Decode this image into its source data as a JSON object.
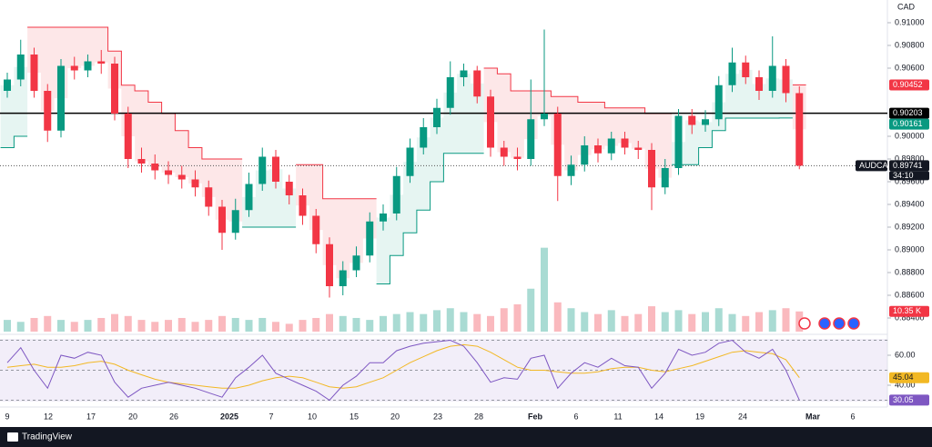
{
  "chart_data": {
    "type": "candlestick",
    "currency": "CAD",
    "symbol": "AUDCAD",
    "ylim": [
      0.8828,
      0.912
    ],
    "yticks": [
      {
        "value": 0.91,
        "label": "0.91000"
      },
      {
        "value": 0.908,
        "label": "0.90800"
      },
      {
        "value": 0.906,
        "label": "0.90600"
      },
      {
        "value": 0.9,
        "label": "0.90000"
      },
      {
        "value": 0.898,
        "label": "0.89800"
      },
      {
        "value": 0.896,
        "label": "0.89600"
      },
      {
        "value": 0.894,
        "label": "0.89400"
      },
      {
        "value": 0.892,
        "label": "0.89200"
      },
      {
        "value": 0.89,
        "label": "0.89000"
      },
      {
        "value": 0.888,
        "label": "0.88800"
      },
      {
        "value": 0.886,
        "label": "0.88600"
      },
      {
        "value": 0.884,
        "label": "0.88400"
      }
    ],
    "x_labels": [
      "9",
      "12",
      "17",
      "20",
      "26",
      "2025",
      "7",
      "10",
      "15",
      "20",
      "23",
      "28",
      "Feb",
      "6",
      "11",
      "14",
      "19",
      "24",
      "Mar",
      "6"
    ],
    "up_color": "#089981",
    "down_color": "#f23645",
    "open": [
      0.904,
      0.905,
      0.9072,
      0.904,
      0.9005,
      0.9062,
      0.9058,
      0.9066,
      0.9064,
      0.902,
      0.898,
      0.8976,
      0.897,
      0.8966,
      0.8962,
      0.8955,
      0.8938,
      0.8915,
      0.8935,
      0.8958,
      0.8982,
      0.896,
      0.8948,
      0.893,
      0.8905,
      0.8868,
      0.8882,
      0.8895,
      0.8925,
      0.8932,
      0.8965,
      0.899,
      0.9008,
      0.9025,
      0.9052,
      0.9058,
      0.9035,
      0.899,
      0.8982,
      0.898,
      0.9015,
      0.902,
      0.8965,
      0.8975,
      0.8992,
      0.8985,
      0.8998,
      0.899,
      0.8988,
      0.8955,
      0.8972,
      0.9018,
      0.901,
      0.9015,
      0.9045,
      0.9065,
      0.9052,
      0.904,
      0.9062,
      0.9038
    ],
    "high": [
      0.9056,
      0.9085,
      0.9078,
      0.9046,
      0.9068,
      0.907,
      0.9072,
      0.9076,
      0.907,
      0.9026,
      0.899,
      0.8984,
      0.8978,
      0.8974,
      0.897,
      0.8961,
      0.8944,
      0.8945,
      0.8968,
      0.899,
      0.8988,
      0.8966,
      0.8954,
      0.8936,
      0.8911,
      0.889,
      0.8903,
      0.8933,
      0.894,
      0.8973,
      0.8998,
      0.9016,
      0.9033,
      0.9066,
      0.9064,
      0.9062,
      0.9041,
      0.8996,
      0.899,
      0.905,
      0.9094,
      0.9026,
      0.8983,
      0.9,
      0.8998,
      0.9004,
      0.9004,
      0.8996,
      0.8994,
      0.898,
      0.9024,
      0.9024,
      0.9023,
      0.9053,
      0.9078,
      0.9071,
      0.9058,
      0.9088,
      0.9068,
      0.9044
    ],
    "low": [
      0.9034,
      0.9044,
      0.9034,
      0.8995,
      0.8999,
      0.905,
      0.9052,
      0.9055,
      0.9014,
      0.8972,
      0.8968,
      0.8962,
      0.8958,
      0.8954,
      0.8947,
      0.893,
      0.89,
      0.8909,
      0.8929,
      0.8952,
      0.8954,
      0.894,
      0.8922,
      0.8897,
      0.8858,
      0.886,
      0.8876,
      0.8889,
      0.8917,
      0.8926,
      0.8959,
      0.8984,
      0.9002,
      0.9019,
      0.9044,
      0.9029,
      0.8982,
      0.8974,
      0.897,
      0.8974,
      0.9009,
      0.8943,
      0.8957,
      0.8969,
      0.8977,
      0.8979,
      0.8984,
      0.898,
      0.8935,
      0.8949,
      0.8966,
      0.9002,
      0.9004,
      0.9009,
      0.9039,
      0.9046,
      0.9032,
      0.9034,
      0.903,
      0.8971
    ],
    "close": [
      0.905,
      0.9072,
      0.904,
      0.9005,
      0.9062,
      0.9058,
      0.9066,
      0.9064,
      0.902,
      0.898,
      0.8976,
      0.897,
      0.8966,
      0.8962,
      0.8955,
      0.8938,
      0.8915,
      0.8935,
      0.8958,
      0.8982,
      0.896,
      0.8948,
      0.893,
      0.8905,
      0.8868,
      0.8882,
      0.8895,
      0.8925,
      0.8932,
      0.8965,
      0.899,
      0.9008,
      0.9025,
      0.9052,
      0.9058,
      0.9035,
      0.899,
      0.8982,
      0.898,
      0.9015,
      0.902,
      0.8965,
      0.8975,
      0.8992,
      0.8985,
      0.8998,
      0.899,
      0.8988,
      0.8955,
      0.8972,
      0.9018,
      0.901,
      0.9015,
      0.9045,
      0.9065,
      0.9052,
      0.904,
      0.9062,
      0.9038,
      0.89741
    ],
    "support_line": {
      "color": "#089981",
      "fill": "rgba(8,153,129,0.10)",
      "values": [
        0.899,
        0.9,
        null,
        null,
        null,
        null,
        null,
        null,
        null,
        null,
        null,
        null,
        null,
        null,
        null,
        null,
        null,
        null,
        0.892,
        0.892,
        0.892,
        0.892,
        null,
        null,
        null,
        null,
        null,
        null,
        0.887,
        0.8895,
        0.8915,
        0.8935,
        0.896,
        0.8985,
        0.8985,
        0.8985,
        null,
        null,
        null,
        null,
        null,
        null,
        null,
        null,
        null,
        null,
        null,
        null,
        null,
        null,
        0.8975,
        0.8975,
        0.899,
        0.9005,
        0.9016,
        0.9016,
        0.9016,
        0.9016,
        0.90161,
        null
      ]
    },
    "resistance_line": {
      "color": "#f23645",
      "fill": "rgba(242,54,69,0.12)",
      "values": [
        null,
        null,
        0.9096,
        0.9096,
        0.9096,
        0.9096,
        0.9096,
        0.9096,
        0.9075,
        0.9045,
        0.904,
        0.903,
        0.902,
        0.9005,
        0.899,
        0.898,
        0.898,
        0.898,
        null,
        null,
        null,
        null,
        0.8975,
        0.8975,
        0.8945,
        0.8945,
        0.8945,
        0.8945,
        null,
        null,
        null,
        null,
        null,
        null,
        null,
        null,
        0.906,
        0.9055,
        0.904,
        0.904,
        0.904,
        0.9035,
        0.9035,
        0.903,
        0.903,
        0.9025,
        0.9025,
        0.9025,
        0.902,
        0.902,
        null,
        null,
        null,
        null,
        null,
        null,
        null,
        null,
        null,
        0.90452
      ]
    },
    "markers": [
      {
        "value": 0.90452,
        "label": "0.90452",
        "color": "#f23645"
      },
      {
        "value": 0.90203,
        "label": "0.90203",
        "color": "#000000"
      },
      {
        "value": 0.90161,
        "label": "0.90161",
        "color": "#089981"
      }
    ],
    "horizontal_line": 0.90203,
    "last_price": {
      "value": 0.89741,
      "label": "0.89741",
      "countdown": "34:10"
    },
    "volume": {
      "ylim": [
        0,
        170
      ],
      "values": [
        6,
        5,
        7,
        8,
        6,
        5,
        6,
        7,
        9,
        8,
        6,
        5,
        6,
        7,
        5,
        6,
        8,
        7,
        6,
        7,
        5,
        4,
        6,
        7,
        9,
        8,
        7,
        6,
        8,
        9,
        10,
        9,
        11,
        12,
        10,
        9,
        8,
        12,
        14,
        22,
        43,
        15,
        12,
        10,
        9,
        11,
        8,
        9,
        13,
        10,
        11,
        9,
        10,
        12,
        9,
        8,
        10,
        11,
        12,
        10.35
      ],
      "last_label": "10.35 K"
    },
    "rsi": {
      "ylim": [
        29.1,
        70.9
      ],
      "yticks": [
        {
          "value": 60,
          "label": "60.00"
        },
        {
          "value": 40,
          "label": "40.00"
        }
      ],
      "bands": [
        70,
        50,
        30
      ],
      "color": "#7e57c2",
      "ma_color": "#f2b824",
      "values": [
        55,
        65,
        50,
        38,
        60,
        58,
        62,
        60,
        42,
        32,
        38,
        40,
        42,
        40,
        38,
        35,
        32,
        45,
        52,
        60,
        48,
        44,
        40,
        36,
        30,
        40,
        46,
        55,
        55,
        63,
        66,
        68,
        69,
        70,
        66,
        55,
        42,
        45,
        44,
        58,
        60,
        38,
        48,
        55,
        52,
        58,
        53,
        52,
        38,
        48,
        64,
        60,
        62,
        68,
        70,
        62,
        58,
        64,
        50,
        30.05
      ],
      "ma": [
        52,
        53,
        54,
        52,
        52,
        53,
        55,
        56,
        54,
        50,
        47,
        44,
        42,
        41,
        40,
        39,
        38,
        38,
        40,
        43,
        45,
        46,
        45,
        42,
        39,
        38,
        39,
        42,
        45,
        50,
        55,
        59,
        63,
        66,
        67,
        66,
        62,
        57,
        52,
        50,
        50,
        49,
        48,
        48,
        49,
        51,
        52,
        52,
        50,
        49,
        51,
        53,
        56,
        59,
        62,
        63,
        62,
        61,
        57,
        45.04
      ],
      "last_label": "30.05",
      "ma_last_label": "45.04"
    },
    "brand": "TradingView"
  }
}
